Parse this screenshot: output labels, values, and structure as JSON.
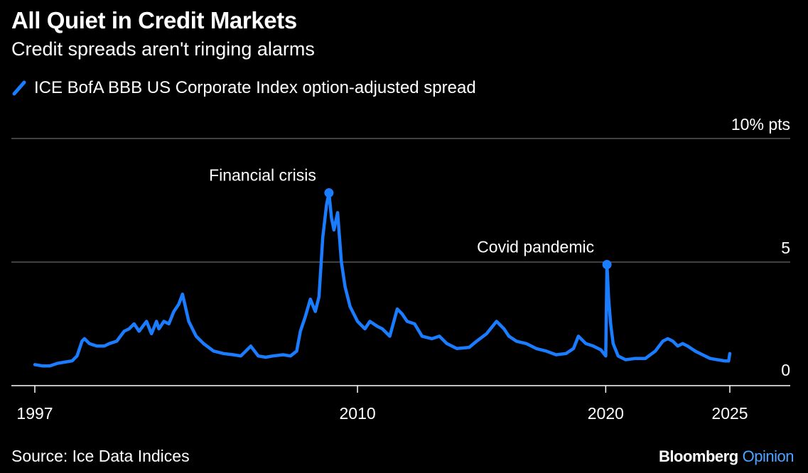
{
  "header": {
    "title": "All Quiet in Credit Markets",
    "subtitle": "Credit spreads aren't ringing alarms"
  },
  "footer": {
    "source": "Source: Ice Data Indices",
    "brand": "Bloomberg",
    "brand_suffix": "Opinion"
  },
  "colors": {
    "background": "#000000",
    "series": "#1a7cff",
    "gridline": "#808080",
    "text": "#ffffff",
    "brand_accent": "#4da3ff"
  },
  "chart_data": {
    "type": "line",
    "title": "All Quiet in Credit Markets",
    "subtitle": "Credit spreads aren't ringing alarms",
    "xlabel": "",
    "ylabel": "",
    "y_unit_label": "10% pts",
    "xlim": [
      1997,
      2027
    ],
    "ylim": [
      0,
      10
    ],
    "x_ticks": [
      1997,
      2010,
      2020,
      2025
    ],
    "x_tick_labels": [
      "1997",
      "2010",
      "2020",
      "2025"
    ],
    "y_ticks": [
      0,
      5,
      10
    ],
    "y_tick_labels": [
      "0",
      "5",
      "10% pts"
    ],
    "grid": true,
    "legend_position": "top-left",
    "series": [
      {
        "name": "ICE BofA BBB US Corporate Index option-adjusted spread",
        "color": "#1a7cff",
        "x": [
          1997.0,
          1997.3,
          1997.6,
          1997.9,
          1998.2,
          1998.5,
          1998.7,
          1998.9,
          1999.0,
          1999.2,
          1999.5,
          1999.8,
          2000.0,
          2000.3,
          2000.6,
          2000.8,
          2001.0,
          2001.2,
          2001.5,
          2001.7,
          2001.9,
          2002.0,
          2002.2,
          2002.4,
          2002.6,
          2002.8,
          2002.95,
          2003.2,
          2003.5,
          2003.8,
          2004.2,
          2004.6,
          2005.0,
          2005.3,
          2005.5,
          2005.7,
          2006.0,
          2006.3,
          2006.6,
          2007.0,
          2007.3,
          2007.55,
          2007.7,
          2007.9,
          2008.1,
          2008.3,
          2008.45,
          2008.6,
          2008.75,
          2008.85,
          2008.95,
          2009.05,
          2009.2,
          2009.35,
          2009.5,
          2009.7,
          2010.0,
          2010.3,
          2010.5,
          2010.8,
          2011.0,
          2011.3,
          2011.6,
          2011.8,
          2012.0,
          2012.3,
          2012.6,
          2013.0,
          2013.3,
          2013.6,
          2014.0,
          2014.5,
          2014.8,
          2015.2,
          2015.6,
          2015.9,
          2016.1,
          2016.4,
          2016.8,
          2017.2,
          2017.6,
          2018.0,
          2018.4,
          2018.7,
          2018.9,
          2019.2,
          2019.5,
          2019.8,
          2020.0,
          2020.05,
          2020.12,
          2020.2,
          2020.3,
          2020.5,
          2020.8,
          2021.2,
          2021.6,
          2022.0,
          2022.3,
          2022.5,
          2022.7,
          2022.9,
          2023.1,
          2023.3,
          2023.6,
          2023.9,
          2024.2,
          2024.5,
          2024.8,
          2024.95,
          2025.0
        ],
        "values": [
          0.85,
          0.8,
          0.8,
          0.9,
          0.95,
          1.0,
          1.2,
          1.8,
          1.9,
          1.7,
          1.6,
          1.6,
          1.7,
          1.8,
          2.2,
          2.3,
          2.5,
          2.2,
          2.6,
          2.1,
          2.6,
          2.3,
          2.6,
          2.5,
          3.0,
          3.3,
          3.7,
          2.6,
          2.0,
          1.7,
          1.4,
          1.3,
          1.25,
          1.2,
          1.4,
          1.6,
          1.2,
          1.15,
          1.2,
          1.25,
          1.2,
          1.4,
          2.2,
          2.8,
          3.5,
          3.0,
          3.6,
          6.0,
          7.3,
          7.8,
          6.8,
          6.3,
          7.0,
          5.0,
          4.0,
          3.2,
          2.6,
          2.3,
          2.6,
          2.4,
          2.3,
          2.0,
          3.1,
          2.9,
          2.6,
          2.5,
          2.0,
          1.9,
          2.0,
          1.7,
          1.5,
          1.55,
          1.8,
          2.1,
          2.6,
          2.3,
          2.0,
          1.8,
          1.7,
          1.5,
          1.4,
          1.25,
          1.3,
          1.5,
          2.0,
          1.7,
          1.6,
          1.45,
          1.2,
          4.9,
          3.5,
          2.5,
          1.7,
          1.2,
          1.05,
          1.1,
          1.1,
          1.4,
          1.8,
          1.9,
          1.8,
          1.6,
          1.7,
          1.6,
          1.4,
          1.25,
          1.1,
          1.05,
          1.0,
          1.0,
          1.3
        ]
      }
    ],
    "markers": [
      {
        "x": 2008.85,
        "y": 7.8
      },
      {
        "x": 2020.05,
        "y": 4.9
      }
    ],
    "annotations": [
      {
        "text": "Financial crisis",
        "x": 2008.85,
        "y": 7.8
      },
      {
        "text": "Covid pandemic",
        "x": 2020.05,
        "y": 4.9
      }
    ]
  }
}
